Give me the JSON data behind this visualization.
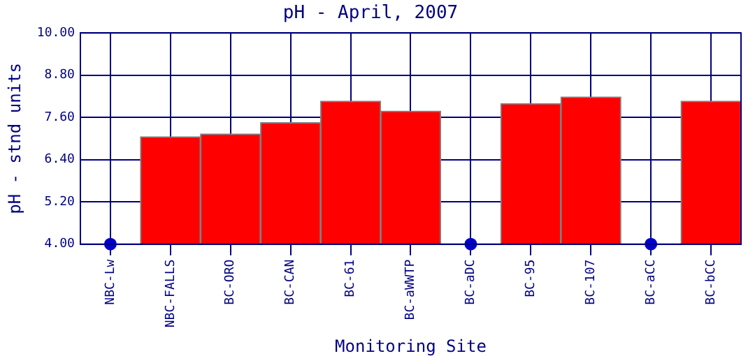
{
  "chart_data": {
    "type": "bar",
    "title": "pH - April, 2007",
    "xlabel": "Monitoring Site",
    "ylabel": "pH - stnd units",
    "categories": [
      "NBC-Lw",
      "NBC-FALLS",
      "BC-ORO",
      "BC-CAN",
      "BC-61",
      "BC-aWWTP",
      "BC-aDC",
      "BC-95",
      "BC-107",
      "BC-aCC",
      "BC-bCC"
    ],
    "series": [
      {
        "color": "#ff0000",
        "values": [
          null,
          7.05,
          7.13,
          7.45,
          8.06,
          7.78,
          null,
          7.99,
          8.18,
          null,
          8.06
        ]
      },
      {
        "type": "scatter",
        "color": "#0000cc",
        "values": [
          4.0,
          null,
          null,
          null,
          null,
          null,
          4.0,
          null,
          null,
          4.0,
          null
        ]
      }
    ],
    "ylim": [
      4.0,
      10.0
    ],
    "yticks": [
      {
        "value": 4,
        "label": "4.00"
      },
      {
        "value": 5.2,
        "label": "5.20"
      },
      {
        "value": 6.4,
        "label": "6.40"
      },
      {
        "value": 7.6,
        "label": "7.60"
      },
      {
        "value": 8.8,
        "label": "8.80"
      },
      {
        "value": 10,
        "label": "10.00"
      }
    ],
    "grid": true,
    "legend": false,
    "marker": "circle"
  }
}
